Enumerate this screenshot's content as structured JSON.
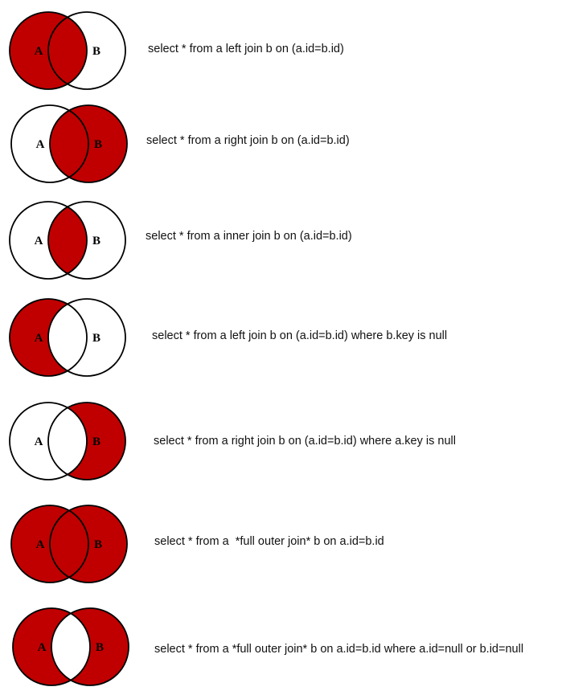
{
  "fill_color": "#c00000",
  "stroke_color": "#000000",
  "diagrams": [
    {
      "label_a": "A",
      "label_b": "B",
      "shaded": [
        "a_only",
        "both"
      ],
      "query": "select * from a left join b on (a.id=b.id)"
    },
    {
      "label_a": "A",
      "label_b": "B",
      "shaded": [
        "both",
        "b_only"
      ],
      "query": "select * from a right join b on (a.id=b.id)"
    },
    {
      "label_a": "A",
      "label_b": "B",
      "shaded": [
        "both"
      ],
      "query": "select * from a inner join b on (a.id=b.id)"
    },
    {
      "label_a": "A",
      "label_b": "B",
      "shaded": [
        "a_only"
      ],
      "query": "select * from a left join b on (a.id=b.id) where b.key is null"
    },
    {
      "label_a": "A",
      "label_b": "B",
      "shaded": [
        "b_only"
      ],
      "query": "select * from a right join b on (a.id=b.id) where a.key is null"
    },
    {
      "label_a": "A",
      "label_b": "B",
      "shaded": [
        "a_only",
        "both",
        "b_only"
      ],
      "query": "select * from a  *full outer join* b on a.id=b.id"
    },
    {
      "label_a": "A",
      "label_b": "B",
      "shaded": [
        "a_only",
        "b_only"
      ],
      "query": "select * from a *full outer join* b on a.id=b.id where a.id=null or b.id=null"
    }
  ]
}
